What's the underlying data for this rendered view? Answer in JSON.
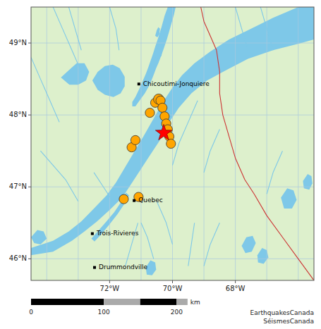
{
  "chart_data": {
    "type": "scatter",
    "xlim": [
      -74.5,
      -65.5
    ],
    "ylim": [
      45.7,
      49.5
    ],
    "xticks": [
      {
        "value": -72,
        "label": "72°W"
      },
      {
        "value": -70,
        "label": "70°W"
      },
      {
        "value": -68,
        "label": "68°W"
      }
    ],
    "yticks": [
      {
        "value": 46,
        "label": "46°N"
      },
      {
        "value": 47,
        "label": "47°N"
      },
      {
        "value": 48,
        "label": "48°N"
      },
      {
        "value": 49,
        "label": "49°N"
      }
    ],
    "grid": true,
    "grid_lines": {
      "x": [
        -74,
        -73,
        -72,
        -71,
        -70,
        -69,
        -68,
        -67,
        -66
      ],
      "y": [
        46,
        47,
        48,
        49
      ],
      "color": "#aac8e0"
    },
    "series": [
      {
        "type": "area",
        "color": "#ddf0cc",
        "x": [
          -74.5,
          -74.5,
          -65.5,
          -65.5
        ],
        "y": [
          45.7,
          49.5,
          49.5,
          45.7
        ]
      },
      {
        "type": "area",
        "color": "#7ec8e8",
        "x": [
          -74.5,
          -73.8,
          -73.2,
          -72.8,
          -72.4,
          -72.0,
          -71.6,
          -71.3,
          -71.0,
          -70.7,
          -70.4,
          -70.1,
          -69.8,
          -69.4,
          -68.9,
          -68.3,
          -67.6,
          -66.8,
          -65.9,
          -65.5,
          -65.5,
          -66.0,
          -66.8,
          -67.5,
          -68.2,
          -68.8,
          -69.3,
          -69.7,
          -70.0,
          -70.3,
          -70.6,
          -70.9,
          -71.2,
          -71.5,
          -71.8,
          -72.1,
          -72.5,
          -72.9,
          -73.3,
          -73.8,
          -74.5,
          -74.5
        ],
        "y": [
          46.05,
          46.1,
          46.25,
          46.38,
          46.52,
          46.68,
          46.85,
          47.05,
          47.25,
          47.45,
          47.65,
          47.9,
          48.1,
          48.3,
          48.48,
          48.62,
          48.78,
          48.9,
          49.0,
          49.05,
          49.5,
          49.5,
          49.35,
          49.2,
          49.05,
          48.88,
          48.72,
          48.55,
          48.38,
          48.18,
          47.95,
          47.72,
          47.5,
          47.28,
          47.06,
          46.88,
          46.7,
          46.52,
          46.38,
          46.25,
          46.15,
          46.05
        ]
      },
      {
        "type": "area",
        "color": "#7ec8e8",
        "x": [
          -71.18,
          -71.05,
          -70.88,
          -70.75,
          -70.65,
          -70.58,
          -70.52,
          -70.45,
          -70.38,
          -70.28,
          -70.18,
          -70.08,
          -69.95,
          -69.9,
          -70.15,
          -70.25,
          -70.35,
          -70.45,
          -70.55,
          -70.62,
          -70.7,
          -70.78,
          -70.85,
          -70.95,
          -71.05,
          -71.18,
          -71.28,
          -71.28,
          -71.18
        ],
        "y": [
          48.12,
          48.2,
          48.3,
          48.4,
          48.5,
          48.58,
          48.65,
          48.72,
          48.8,
          48.92,
          49.05,
          49.2,
          49.4,
          49.5,
          49.5,
          49.38,
          49.22,
          49.08,
          48.95,
          48.85,
          48.75,
          48.65,
          48.57,
          48.47,
          48.37,
          48.25,
          48.18,
          48.12,
          48.12
        ]
      },
      {
        "type": "area",
        "color": "#7ec8e8",
        "x": [
          -72.55,
          -72.38,
          -72.15,
          -71.9,
          -71.68,
          -71.52,
          -71.52,
          -71.65,
          -71.88,
          -72.15,
          -72.38,
          -72.55
        ],
        "y": [
          48.48,
          48.6,
          48.68,
          48.7,
          48.65,
          48.53,
          48.4,
          48.3,
          48.25,
          48.28,
          48.35,
          48.48
        ]
      },
      {
        "type": "area",
        "color": "#7ec8e8",
        "x": [
          -73.55,
          -73.3,
          -73.05,
          -72.8,
          -72.65,
          -72.75,
          -73.0,
          -73.28,
          -73.55
        ],
        "y": [
          48.52,
          48.62,
          48.72,
          48.72,
          48.6,
          48.48,
          48.42,
          48.42,
          48.52
        ]
      },
      {
        "type": "area",
        "color": "#7ec8e8",
        "x": [
          -70.62,
          -70.5,
          -70.4,
          -70.32,
          -70.35,
          -70.48,
          -70.62
        ],
        "y": [
          48.82,
          48.92,
          48.97,
          48.92,
          48.82,
          48.78,
          48.82
        ]
      },
      {
        "type": "area",
        "color": "#7ec8e8",
        "x": [
          -70.55,
          -70.5,
          -70.45,
          -70.4,
          -70.42,
          -70.48,
          -70.55
        ],
        "y": [
          49.1,
          49.18,
          49.22,
          49.2,
          49.12,
          49.08,
          49.1
        ]
      },
      {
        "type": "area",
        "color": "#7ec8e8",
        "x": [
          -72.58,
          -72.38,
          -72.1,
          -71.85,
          -71.65,
          -71.48,
          -71.38,
          -71.55,
          -71.75,
          -72.0,
          -72.25,
          -72.48,
          -72.58
        ],
        "y": [
          46.28,
          46.38,
          46.52,
          46.65,
          46.78,
          46.92,
          46.88,
          46.75,
          46.62,
          46.48,
          46.35,
          46.24,
          46.28
        ]
      },
      {
        "type": "area",
        "color": "#7ec8e8",
        "x": [
          -74.5,
          -74.3,
          -74.1,
          -74.0,
          -74.2,
          -74.4,
          -74.5
        ],
        "y": [
          46.3,
          46.4,
          46.38,
          46.28,
          46.2,
          46.22,
          46.3
        ]
      },
      {
        "type": "area",
        "color": "#7ec8e8",
        "x": [
          -67.8,
          -67.65,
          -67.45,
          -67.35,
          -67.48,
          -67.68,
          -67.8
        ],
        "y": [
          46.18,
          46.3,
          46.32,
          46.22,
          46.1,
          46.08,
          46.18
        ]
      },
      {
        "type": "area",
        "color": "#7ec8e8",
        "x": [
          -67.3,
          -67.15,
          -67.0,
          -66.95,
          -67.1,
          -67.28,
          -67.3
        ],
        "y": [
          46.05,
          46.15,
          46.12,
          46.02,
          45.93,
          45.95,
          46.05
        ]
      },
      {
        "type": "area",
        "color": "#7ec8e8",
        "x": [
          -66.55,
          -66.35,
          -66.15,
          -66.05,
          -66.2,
          -66.45,
          -66.55
        ],
        "y": [
          46.85,
          46.98,
          46.95,
          46.82,
          46.7,
          46.7,
          46.85
        ]
      },
      {
        "type": "area",
        "color": "#7ec8e8",
        "x": [
          -65.85,
          -65.7,
          -65.58,
          -65.55,
          -65.65,
          -65.82,
          -65.85
        ],
        "y": [
          47.08,
          47.18,
          47.15,
          47.05,
          46.96,
          46.98,
          47.08
        ]
      },
      {
        "type": "area",
        "color": "#7ec8e8",
        "x": [
          -70.85,
          -70.7,
          -70.55,
          -70.52,
          -70.65,
          -70.82,
          -70.85
        ],
        "y": [
          45.88,
          45.98,
          45.95,
          45.85,
          45.77,
          45.78,
          45.88
        ]
      },
      {
        "type": "line",
        "color": "#7ec8e8",
        "x": [
          -74.5,
          -74.2,
          -73.9,
          -73.6
        ],
        "y": [
          48.8,
          48.5,
          48.2,
          47.9
        ]
      },
      {
        "type": "line",
        "color": "#7ec8e8",
        "x": [
          -73.8,
          -73.5,
          -73.2,
          -72.9
        ],
        "y": [
          49.5,
          49.2,
          48.9,
          48.6
        ]
      },
      {
        "type": "line",
        "color": "#7ec8e8",
        "x": [
          -74.2,
          -73.8,
          -73.4,
          -73.0
        ],
        "y": [
          47.5,
          47.3,
          47.1,
          46.8
        ]
      },
      {
        "type": "line",
        "color": "#7ec8e8",
        "x": [
          -73.3,
          -73.1,
          -72.9
        ],
        "y": [
          49.5,
          49.2,
          48.9
        ]
      },
      {
        "type": "line",
        "color": "#7ec8e8",
        "x": [
          -72.0,
          -71.8,
          -71.7
        ],
        "y": [
          49.5,
          49.2,
          48.9
        ]
      },
      {
        "type": "line",
        "color": "#7ec8e8",
        "x": [
          -72.5,
          -72.2,
          -71.9
        ],
        "y": [
          47.2,
          47.0,
          46.8
        ]
      },
      {
        "type": "line",
        "color": "#7ec8e8",
        "x": [
          -71.0,
          -70.8,
          -70.6
        ],
        "y": [
          46.5,
          46.3,
          46.0
        ]
      },
      {
        "type": "line",
        "color": "#7ec8e8",
        "x": [
          -69.2,
          -69.5,
          -69.8,
          -70.0
        ],
        "y": [
          48.2,
          47.9,
          47.6,
          47.3
        ]
      },
      {
        "type": "line",
        "color": "#7ec8e8",
        "x": [
          -68.5,
          -68.8,
          -69.0
        ],
        "y": [
          47.8,
          47.5,
          47.2
        ]
      },
      {
        "type": "line",
        "color": "#7ec8e8",
        "x": [
          -68.0,
          -67.8,
          -67.6
        ],
        "y": [
          49.5,
          49.2,
          48.9
        ]
      },
      {
        "type": "line",
        "color": "#7ec8e8",
        "x": [
          -67.2,
          -67.0,
          -66.8
        ],
        "y": [
          49.5,
          49.2,
          48.9
        ]
      },
      {
        "type": "line",
        "color": "#7ec8e8",
        "x": [
          -66.5,
          -66.8,
          -67.0
        ],
        "y": [
          47.5,
          47.2,
          46.9
        ]
      },
      {
        "type": "line",
        "color": "#7ec8e8",
        "x": [
          -68.5,
          -68.8,
          -69.0
        ],
        "y": [
          46.5,
          46.2,
          45.9
        ]
      },
      {
        "type": "line",
        "color": "#7ec8e8",
        "x": [
          -70.5,
          -70.2,
          -70.0
        ],
        "y": [
          46.8,
          46.5,
          46.2
        ]
      },
      {
        "type": "line",
        "color": "#7ec8e8",
        "x": [
          -71.5,
          -71.3,
          -71.1
        ],
        "y": [
          45.9,
          46.2,
          46.5
        ]
      },
      {
        "type": "line",
        "color": "#7ec8e8",
        "x": [
          -69.5,
          -69.4,
          -69.3
        ],
        "y": [
          45.9,
          46.2,
          46.5
        ]
      },
      {
        "type": "line",
        "color": "#cc3333",
        "x": [
          -65.5,
          -66.0,
          -66.5,
          -67.0,
          -67.4,
          -67.7,
          -68.0,
          -68.2,
          -68.4,
          -68.5,
          -68.5,
          -68.6
        ],
        "y": [
          45.7,
          46.0,
          46.3,
          46.6,
          46.9,
          47.1,
          47.4,
          47.7,
          48.0,
          48.3,
          48.6,
          48.9
        ]
      },
      {
        "type": "line",
        "color": "#cc3333",
        "x": [
          -68.6,
          -68.8,
          -69.0,
          -69.1
        ],
        "y": [
          48.9,
          49.1,
          49.3,
          49.5
        ]
      },
      {
        "type": "scatter",
        "marker": "circle",
        "color": "#FFA500",
        "x": [
          -71.3,
          -71.18,
          -70.72,
          -70.55,
          -70.44,
          -70.38,
          -70.32,
          -70.25,
          -70.2,
          -70.15,
          -70.1,
          -70.05,
          -71.08,
          -71.55
        ],
        "y": [
          47.55,
          47.65,
          48.03,
          48.17,
          48.22,
          48.2,
          48.1,
          47.98,
          47.88,
          47.8,
          47.7,
          47.6,
          46.86,
          46.83
        ],
        "sizes": [
          90,
          90,
          90,
          90,
          110,
          90,
          90,
          90,
          90,
          90,
          90,
          90,
          90,
          90
        ]
      },
      {
        "type": "scatter",
        "marker": "star",
        "color": "red",
        "x": [
          -70.28
        ],
        "y": [
          47.75
        ],
        "sizes": [
          200
        ]
      },
      {
        "type": "scatter",
        "marker": "square",
        "color": "black",
        "x": [
          -71.07,
          -71.22,
          -72.55,
          -72.48
        ],
        "y": [
          48.43,
          46.81,
          46.35,
          45.88
        ],
        "labels": [
          "Chicoutimi-Jonquiere",
          "Quebec",
          "Trois-Rivieres",
          "Drummondville"
        ]
      }
    ],
    "annotations": [
      {
        "text": "EarthquakesCanada\nSéismesCanada"
      }
    ],
    "scale_bar": {
      "xlim": [
        0,
        220
      ],
      "ticks": [
        0,
        100,
        200
      ],
      "unit": "km",
      "segments": [
        {
          "from": 0,
          "to": 100,
          "color": "black"
        },
        {
          "from": 100,
          "to": 150,
          "color": "#aaaaaa"
        },
        {
          "from": 150,
          "to": 200,
          "color": "black"
        },
        {
          "from": 200,
          "to": 215,
          "color": "#aaaaaa"
        }
      ]
    }
  }
}
